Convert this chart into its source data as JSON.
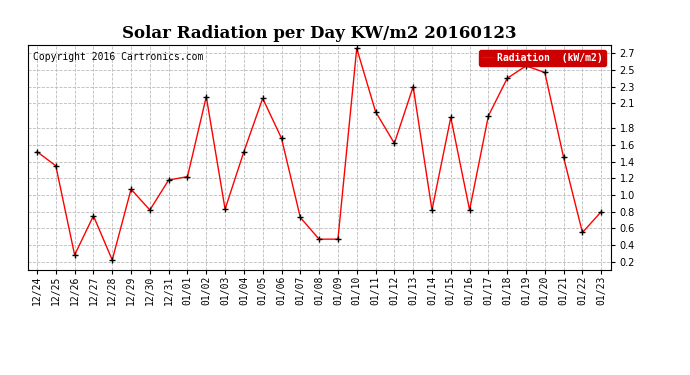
{
  "title": "Solar Radiation per Day KW/m2 20160123",
  "copyright": "Copyright 2016 Cartronics.com",
  "legend_label": "Radiation  (kW/m2)",
  "x_labels": [
    "12/24",
    "12/25",
    "12/26",
    "12/27",
    "12/28",
    "12/29",
    "12/30",
    "12/31",
    "01/01",
    "01/02",
    "01/03",
    "01/04",
    "01/05",
    "01/06",
    "01/07",
    "01/08",
    "01/09",
    "01/10",
    "01/11",
    "01/12",
    "01/13",
    "01/14",
    "01/15",
    "01/16",
    "01/17",
    "01/18",
    "01/19",
    "01/20",
    "01/21",
    "01/22",
    "01/23"
  ],
  "y_values": [
    1.52,
    1.35,
    0.28,
    0.75,
    0.22,
    1.07,
    0.82,
    1.18,
    1.22,
    2.18,
    0.83,
    1.52,
    2.16,
    1.68,
    0.73,
    0.47,
    0.47,
    2.76,
    2.0,
    1.62,
    2.3,
    0.82,
    1.93,
    0.82,
    1.95,
    2.4,
    2.55,
    2.47,
    1.45,
    0.55,
    0.8
  ],
  "line_color": "red",
  "marker_color": "black",
  "grid_color": "#bbbbbb",
  "bg_color": "#ffffff",
  "plot_bg_color": "#ffffff",
  "legend_bg": "#cc0000",
  "legend_text_color": "#ffffff",
  "ylim_min": 0.1,
  "ylim_max": 2.8,
  "yticks": [
    0.2,
    0.4,
    0.6,
    0.8,
    1.0,
    1.2,
    1.4,
    1.6,
    1.8,
    2.1,
    2.3,
    2.5,
    2.7
  ],
  "title_fontsize": 12,
  "tick_fontsize": 7,
  "copyright_fontsize": 7
}
